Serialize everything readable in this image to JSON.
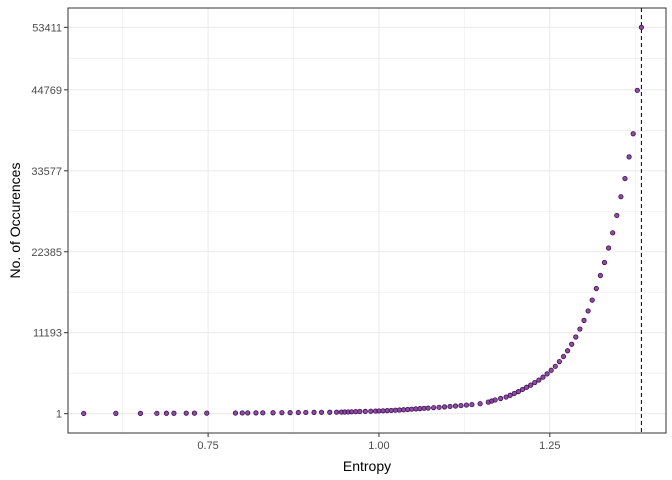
{
  "chart_data": {
    "type": "scatter",
    "title": "",
    "xlabel": "Entropy",
    "ylabel": "No. of Occurences",
    "xlim": [
      0.545,
      1.42
    ],
    "ylim": [
      -2670,
      56080
    ],
    "x_ticks": [
      0.75,
      1.0,
      1.25
    ],
    "x_tick_labels": [
      "0.75",
      "1.00",
      "1.25"
    ],
    "y_ticks": [
      1,
      11193,
      22385,
      33577,
      44769,
      53411
    ],
    "y_tick_labels": [
      "1",
      "11193",
      "22385",
      "33577",
      "44769",
      "53411"
    ],
    "grid": true,
    "vline": {
      "x": 1.384,
      "style": "dashed"
    },
    "colors": {
      "point_fill": "#7b2d8e",
      "point_stroke": "#3b0f54",
      "grid": "#ebebeb",
      "panel_border": "#333333",
      "vline": "#000000"
    },
    "x": [
      0.568,
      0.615,
      0.651,
      0.675,
      0.689,
      0.7,
      0.718,
      0.73,
      0.748,
      0.79,
      0.8,
      0.808,
      0.82,
      0.83,
      0.845,
      0.858,
      0.87,
      0.882,
      0.893,
      0.905,
      0.916,
      0.928,
      0.938,
      0.945,
      0.95,
      0.955,
      0.96,
      0.966,
      0.972,
      0.98,
      0.988,
      0.995,
      1.0,
      1.006,
      1.012,
      1.018,
      1.024,
      1.03,
      1.036,
      1.042,
      1.048,
      1.054,
      1.06,
      1.066,
      1.072,
      1.08,
      1.088,
      1.096,
      1.104,
      1.112,
      1.12,
      1.128,
      1.136,
      1.148,
      1.16,
      1.165,
      1.17,
      1.178,
      1.186,
      1.192,
      1.198,
      1.204,
      1.21,
      1.216,
      1.222,
      1.228,
      1.234,
      1.24,
      1.246,
      1.252,
      1.258,
      1.264,
      1.27,
      1.276,
      1.282,
      1.288,
      1.294,
      1.3,
      1.306,
      1.312,
      1.318,
      1.324,
      1.33,
      1.336,
      1.342,
      1.348,
      1.354,
      1.36,
      1.366,
      1.372,
      1.378,
      1.384
    ],
    "y": [
      30,
      40,
      40,
      50,
      60,
      60,
      70,
      80,
      80,
      90,
      100,
      100,
      110,
      120,
      130,
      140,
      150,
      160,
      170,
      180,
      190,
      200,
      210,
      220,
      230,
      240,
      260,
      280,
      300,
      320,
      340,
      360,
      380,
      400,
      420,
      450,
      480,
      510,
      540,
      580,
      620,
      660,
      700,
      740,
      780,
      830,
      880,
      940,
      1000,
      1060,
      1120,
      1190,
      1260,
      1380,
      1600,
      1750,
      1900,
      2100,
      2300,
      2550,
      2800,
      3050,
      3350,
      3650,
      3950,
      4300,
      4650,
      5050,
      5500,
      6000,
      6550,
      7200,
      7900,
      8700,
      9600,
      10600,
      11700,
      12900,
      14200,
      15700,
      17300,
      19100,
      20900,
      22900,
      25000,
      27400,
      30000,
      32500,
      35500,
      38700,
      44700,
      53411
    ]
  }
}
